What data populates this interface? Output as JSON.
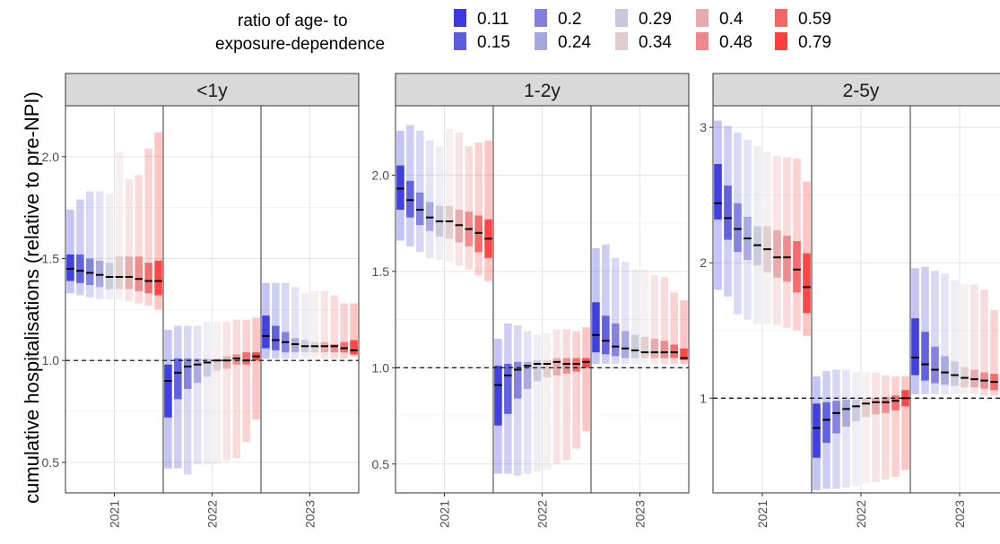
{
  "chart_data": {
    "type": "bar",
    "description_axis": "faceted floating-bar interval chart",
    "ylabel": "cumulative hospitalisations (relative to pre-NPI)",
    "legend": {
      "title_line1": "ratio of age- to",
      "title_line2": "exposure-dependence",
      "placement": "top",
      "entries": [
        {
          "label": "0.11",
          "color": "#3a3ae0"
        },
        {
          "label": "0.15",
          "color": "#5c5cdf"
        },
        {
          "label": "0.2",
          "color": "#7f7fde"
        },
        {
          "label": "0.24",
          "color": "#a6a6e0"
        },
        {
          "label": "0.29",
          "color": "#c8c8dc"
        },
        {
          "label": "0.34",
          "color": "#e0cccc"
        },
        {
          "label": "0.4",
          "color": "#e6aaaa"
        },
        {
          "label": "0.48",
          "color": "#ef8888"
        },
        {
          "label": "0.59",
          "color": "#f46666"
        },
        {
          "label": "0.79",
          "color": "#ff4040"
        }
      ]
    },
    "reference_line": 1.0,
    "grid": true,
    "facets": [
      {
        "strip": "<1y",
        "ylim": [
          0.35,
          2.25
        ],
        "yticks": [
          0.5,
          1.0,
          1.5,
          2.0
        ],
        "ytick_labels": [
          "0.5",
          "1.0",
          "1.5",
          "2.0"
        ],
        "years": [
          {
            "label": "2021",
            "median": [
              1.45,
              1.44,
              1.43,
              1.42,
              1.41,
              1.41,
              1.41,
              1.4,
              1.39,
              1.39
            ],
            "inner_lo": [
              1.39,
              1.38,
              1.37,
              1.36,
              1.35,
              1.35,
              1.35,
              1.34,
              1.33,
              1.32
            ],
            "inner_hi": [
              1.52,
              1.52,
              1.5,
              1.49,
              1.48,
              1.51,
              1.51,
              1.51,
              1.48,
              1.49
            ],
            "outer_lo": [
              1.33,
              1.32,
              1.31,
              1.3,
              1.3,
              1.3,
              1.29,
              1.28,
              1.27,
              1.25
            ],
            "outer_hi": [
              1.74,
              1.79,
              1.83,
              1.83,
              1.82,
              2.02,
              1.89,
              1.91,
              2.04,
              2.12
            ]
          },
          {
            "label": "2022",
            "median": [
              0.9,
              0.94,
              0.97,
              0.98,
              0.99,
              1.0,
              1.0,
              1.01,
              1.0,
              1.02
            ],
            "inner_lo": [
              0.72,
              0.81,
              0.86,
              0.89,
              0.92,
              0.95,
              0.96,
              0.98,
              0.98,
              1.0
            ],
            "inner_hi": [
              0.98,
              1.01,
              1.01,
              1.01,
              1.01,
              1.01,
              1.02,
              1.03,
              1.04,
              1.04
            ],
            "outer_lo": [
              0.47,
              0.47,
              0.44,
              0.49,
              0.49,
              0.49,
              0.51,
              0.52,
              0.6,
              0.71
            ],
            "outer_hi": [
              1.15,
              1.17,
              1.17,
              1.17,
              1.19,
              1.19,
              1.19,
              1.2,
              1.2,
              1.21
            ]
          },
          {
            "label": "2023",
            "median": [
              1.12,
              1.1,
              1.09,
              1.08,
              1.07,
              1.07,
              1.07,
              1.07,
              1.06,
              1.05
            ],
            "inner_lo": [
              1.06,
              1.05,
              1.04,
              1.04,
              1.04,
              1.04,
              1.04,
              1.04,
              1.04,
              1.03
            ],
            "inner_hi": [
              1.22,
              1.17,
              1.14,
              1.11,
              1.1,
              1.09,
              1.09,
              1.08,
              1.09,
              1.1
            ],
            "outer_lo": [
              1.01,
              1.01,
              1.01,
              1.01,
              1.01,
              1.01,
              1.01,
              1.01,
              1.01,
              1.02
            ],
            "outer_hi": [
              1.38,
              1.38,
              1.38,
              1.36,
              1.33,
              1.34,
              1.34,
              1.32,
              1.28,
              1.28
            ]
          }
        ]
      },
      {
        "strip": "1-2y",
        "ylim": [
          0.35,
          2.36
        ],
        "yticks": [
          0.5,
          1.0,
          1.5,
          2.0
        ],
        "ytick_labels": [
          "0.5",
          "1.0",
          "1.5",
          "2.0"
        ],
        "years": [
          {
            "label": "2021",
            "median": [
              1.93,
              1.87,
              1.82,
              1.78,
              1.76,
              1.76,
              1.74,
              1.72,
              1.7,
              1.67
            ],
            "inner_lo": [
              1.82,
              1.78,
              1.74,
              1.71,
              1.68,
              1.67,
              1.65,
              1.63,
              1.6,
              1.57
            ],
            "inner_hi": [
              2.05,
              1.97,
              1.91,
              1.86,
              1.84,
              1.84,
              1.82,
              1.81,
              1.79,
              1.77
            ],
            "outer_lo": [
              1.66,
              1.63,
              1.6,
              1.57,
              1.56,
              1.55,
              1.53,
              1.51,
              1.48,
              1.45
            ],
            "outer_hi": [
              2.23,
              2.26,
              2.23,
              2.18,
              2.15,
              2.24,
              2.22,
              2.15,
              2.17,
              2.18
            ]
          },
          {
            "label": "2022",
            "median": [
              0.91,
              0.96,
              0.99,
              1.01,
              1.02,
              1.02,
              1.03,
              1.02,
              1.02,
              1.03
            ],
            "inner_lo": [
              0.7,
              0.76,
              0.84,
              0.89,
              0.93,
              0.95,
              0.96,
              0.97,
              0.98,
              1.0
            ],
            "inner_hi": [
              1.01,
              1.02,
              1.03,
              1.03,
              1.04,
              1.04,
              1.05,
              1.05,
              1.05,
              1.05
            ],
            "outer_lo": [
              0.45,
              0.45,
              0.44,
              0.45,
              0.46,
              0.47,
              0.5,
              0.52,
              0.58,
              0.67
            ],
            "outer_hi": [
              1.15,
              1.23,
              1.22,
              1.19,
              1.17,
              1.18,
              1.2,
              1.2,
              1.19,
              1.21
            ]
          },
          {
            "label": "2023",
            "median": [
              1.17,
              1.14,
              1.11,
              1.1,
              1.09,
              1.08,
              1.08,
              1.08,
              1.08,
              1.05
            ],
            "inner_lo": [
              1.08,
              1.07,
              1.06,
              1.05,
              1.05,
              1.05,
              1.05,
              1.05,
              1.05,
              1.04
            ],
            "inner_hi": [
              1.34,
              1.27,
              1.23,
              1.19,
              1.17,
              1.16,
              1.15,
              1.14,
              1.12,
              1.1
            ],
            "outer_lo": [
              1.02,
              1.02,
              1.02,
              1.02,
              1.02,
              1.02,
              1.02,
              1.02,
              1.02,
              1.02
            ],
            "outer_hi": [
              1.62,
              1.64,
              1.57,
              1.55,
              1.51,
              1.51,
              1.48,
              1.47,
              1.39,
              1.35
            ]
          }
        ]
      },
      {
        "strip": "2-5y",
        "ylim": [
          0.3,
          3.16
        ],
        "yticks": [
          1,
          2,
          3
        ],
        "ytick_labels": [
          "1",
          "2",
          "3"
        ],
        "years": [
          {
            "label": "2021",
            "median": [
              2.44,
              2.33,
              2.25,
              2.18,
              2.13,
              2.1,
              2.04,
              2.04,
              1.95,
              1.82
            ],
            "inner_lo": [
              2.32,
              2.17,
              2.08,
              2.02,
              1.98,
              1.93,
              1.89,
              1.86,
              1.78,
              1.63
            ],
            "inner_hi": [
              2.73,
              2.57,
              2.44,
              2.34,
              2.27,
              2.27,
              2.24,
              2.2,
              2.16,
              2.07
            ],
            "outer_lo": [
              1.8,
              1.75,
              1.62,
              1.58,
              1.55,
              1.55,
              1.54,
              1.52,
              1.5,
              1.46
            ],
            "outer_hi": [
              3.05,
              3.01,
              2.96,
              2.91,
              2.86,
              2.82,
              2.79,
              2.78,
              2.77,
              2.6
            ]
          },
          {
            "label": "2022",
            "median": [
              0.78,
              0.84,
              0.89,
              0.92,
              0.94,
              0.96,
              0.97,
              0.97,
              0.98,
              1.0
            ],
            "inner_lo": [
              0.56,
              0.67,
              0.74,
              0.79,
              0.83,
              0.86,
              0.88,
              0.89,
              0.91,
              0.94
            ],
            "inner_hi": [
              0.96,
              0.97,
              0.98,
              0.99,
              0.99,
              1.0,
              1.0,
              1.01,
              1.02,
              1.06
            ],
            "outer_lo": [
              0.32,
              0.33,
              0.33,
              0.34,
              0.35,
              0.37,
              0.38,
              0.4,
              0.42,
              0.47
            ],
            "outer_hi": [
              1.16,
              1.2,
              1.21,
              1.21,
              1.19,
              1.19,
              1.19,
              1.17,
              1.16,
              1.16
            ]
          },
          {
            "label": "2023",
            "median": [
              1.3,
              1.25,
              1.21,
              1.19,
              1.17,
              1.15,
              1.14,
              1.13,
              1.12,
              1.1
            ],
            "inner_lo": [
              1.17,
              1.13,
              1.11,
              1.1,
              1.09,
              1.08,
              1.08,
              1.07,
              1.06,
              1.05
            ],
            "inner_hi": [
              1.59,
              1.49,
              1.38,
              1.31,
              1.27,
              1.23,
              1.21,
              1.19,
              1.18,
              1.16
            ],
            "outer_lo": [
              1.03,
              1.03,
              1.03,
              1.03,
              1.03,
              1.03,
              1.03,
              1.02,
              1.02,
              1.02
            ],
            "outer_hi": [
              1.96,
              1.97,
              1.94,
              1.92,
              1.87,
              1.84,
              1.84,
              1.8,
              1.65,
              1.55
            ]
          }
        ]
      }
    ]
  }
}
